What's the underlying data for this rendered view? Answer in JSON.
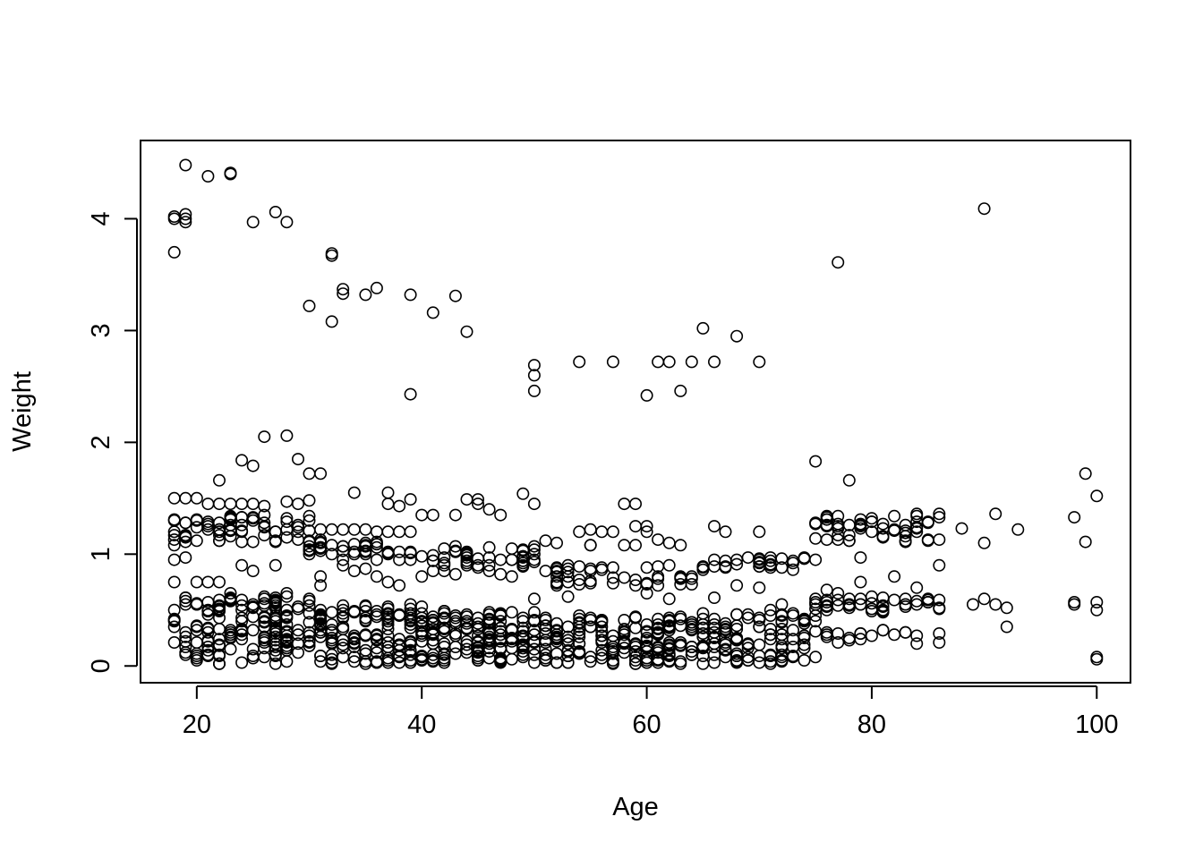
{
  "chart_data": {
    "type": "scatter",
    "title": "",
    "xlabel": "Age",
    "ylabel": "Weight",
    "xlim": [
      15,
      103
    ],
    "ylim": [
      -0.15,
      4.7
    ],
    "x_ticks": [
      20,
      40,
      60,
      80,
      100
    ],
    "y_ticks": [
      0,
      1,
      2,
      3,
      4
    ],
    "x_tick_labels": [
      "20",
      "40",
      "60",
      "80",
      "100"
    ],
    "y_tick_labels": [
      "0",
      "1",
      "2",
      "3",
      "4"
    ],
    "grid": false,
    "legend": "none",
    "marker": "open-circle",
    "marker_color": "#000000",
    "points": [
      [
        18,
        4.02
      ],
      [
        18,
        4.0
      ],
      [
        18,
        3.7
      ],
      [
        19,
        4.48
      ],
      [
        19,
        4.04
      ],
      [
        19,
        4.0
      ],
      [
        19,
        3.97
      ],
      [
        21,
        4.38
      ],
      [
        23,
        4.4
      ],
      [
        23,
        4.41
      ],
      [
        25,
        3.97
      ],
      [
        27,
        4.06
      ],
      [
        28,
        3.97
      ],
      [
        32,
        3.69
      ],
      [
        32,
        3.67
      ],
      [
        32,
        3.08
      ],
      [
        30,
        3.22
      ],
      [
        33,
        3.37
      ],
      [
        33,
        3.33
      ],
      [
        35,
        3.32
      ],
      [
        36,
        3.38
      ],
      [
        39,
        3.32
      ],
      [
        39,
        2.43
      ],
      [
        41,
        3.16
      ],
      [
        43,
        3.31
      ],
      [
        44,
        2.99
      ],
      [
        50,
        2.69
      ],
      [
        50,
        2.6
      ],
      [
        50,
        2.46
      ],
      [
        54,
        2.72
      ],
      [
        57,
        2.72
      ],
      [
        60,
        2.42
      ],
      [
        61,
        2.72
      ],
      [
        62,
        2.72
      ],
      [
        63,
        2.46
      ],
      [
        64,
        2.72
      ],
      [
        65,
        3.02
      ],
      [
        66,
        2.72
      ],
      [
        68,
        2.95
      ],
      [
        70,
        2.72
      ],
      [
        77,
        3.61
      ],
      [
        90,
        4.09
      ],
      [
        24,
        1.84
      ],
      [
        25,
        1.79
      ],
      [
        26,
        2.05
      ],
      [
        28,
        2.06
      ],
      [
        29,
        1.85
      ],
      [
        30,
        1.72
      ],
      [
        31,
        1.72
      ],
      [
        22,
        1.66
      ],
      [
        34,
        1.55
      ],
      [
        37,
        1.55
      ],
      [
        39,
        1.49
      ],
      [
        44,
        1.49
      ],
      [
        45,
        1.49
      ],
      [
        49,
        1.54
      ],
      [
        50,
        1.45
      ],
      [
        58,
        1.45
      ],
      [
        59,
        1.45
      ],
      [
        75,
        1.83
      ],
      [
        78,
        1.66
      ],
      [
        99,
        1.72
      ],
      [
        100,
        1.52
      ],
      [
        98,
        1.33
      ],
      [
        99,
        1.11
      ],
      [
        91,
        1.36
      ],
      [
        93,
        1.22
      ],
      [
        90,
        1.1
      ],
      [
        88,
        1.23
      ],
      [
        86,
        1.36
      ],
      [
        66,
        1.25
      ],
      [
        67,
        1.2
      ],
      [
        70,
        1.2
      ],
      [
        59,
        1.25
      ],
      [
        60,
        1.25
      ],
      [
        60,
        1.2
      ],
      [
        56,
        1.2
      ],
      [
        57,
        1.2
      ],
      [
        54,
        1.2
      ],
      [
        55,
        1.22
      ],
      [
        52,
        1.1
      ],
      [
        51,
        1.12
      ],
      [
        55,
        1.08
      ],
      [
        58,
        1.08
      ],
      [
        59,
        1.08
      ],
      [
        61,
        1.13
      ],
      [
        62,
        1.1
      ],
      [
        63,
        1.08
      ],
      [
        47,
        1.35
      ],
      [
        46,
        1.4
      ],
      [
        45,
        1.45
      ],
      [
        41,
        1.35
      ],
      [
        40,
        1.35
      ],
      [
        43,
        1.35
      ],
      [
        38,
        1.43
      ],
      [
        37,
        1.45
      ],
      [
        76,
        0.68
      ],
      [
        77,
        0.65
      ],
      [
        86,
        0.9
      ],
      [
        84,
        0.7
      ],
      [
        82,
        0.8
      ],
      [
        79,
        0.97
      ],
      [
        79,
        0.75
      ],
      [
        66,
        0.61
      ],
      [
        71,
        0.5
      ],
      [
        72,
        0.55
      ],
      [
        73,
        0.45
      ],
      [
        74,
        0.4
      ],
      [
        70,
        0.7
      ],
      [
        68,
        0.72
      ],
      [
        55,
        1.08
      ],
      [
        60,
        0.65
      ],
      [
        62,
        0.6
      ],
      [
        66,
        0.2
      ],
      [
        67,
        0.15
      ],
      [
        68,
        0.25
      ],
      [
        71,
        0.02
      ],
      [
        72,
        0.1
      ],
      [
        74,
        0.05
      ],
      [
        92,
        0.35
      ],
      [
        90,
        0.6
      ],
      [
        89,
        0.55
      ],
      [
        91,
        0.55
      ],
      [
        92,
        0.52
      ],
      [
        98,
        0.57
      ],
      [
        98,
        0.55
      ],
      [
        100,
        0.57
      ],
      [
        100,
        0.5
      ],
      [
        100,
        0.08
      ],
      [
        100,
        0.06
      ],
      [
        18,
        1.5
      ],
      [
        19,
        1.5
      ],
      [
        20,
        1.5
      ],
      [
        21,
        1.45
      ],
      [
        22,
        1.45
      ],
      [
        23,
        1.45
      ],
      [
        24,
        1.45
      ],
      [
        25,
        1.45
      ],
      [
        26,
        1.43
      ],
      [
        28,
        1.47
      ],
      [
        29,
        1.45
      ],
      [
        30,
        1.48
      ],
      [
        18,
        0.95
      ],
      [
        18,
        0.75
      ],
      [
        18,
        0.5
      ],
      [
        19,
        0.97
      ],
      [
        20,
        0.75
      ],
      [
        21,
        0.75
      ],
      [
        22,
        0.75
      ],
      [
        22,
        0.5
      ],
      [
        23,
        0.65
      ],
      [
        23,
        0.6
      ],
      [
        24,
        0.9
      ],
      [
        25,
        0.85
      ],
      [
        27,
        0.9
      ],
      [
        28,
        0.65
      ],
      [
        30,
        0.6
      ],
      [
        31,
        0.8
      ],
      [
        31,
        0.72
      ],
      [
        32,
        1.22
      ],
      [
        33,
        1.22
      ],
      [
        34,
        1.22
      ],
      [
        35,
        1.22
      ],
      [
        36,
        1.2
      ],
      [
        37,
        1.2
      ],
      [
        38,
        1.2
      ],
      [
        39,
        1.2
      ],
      [
        32,
        1.0
      ],
      [
        33,
        0.95
      ],
      [
        34,
        1.0
      ],
      [
        35,
        1.0
      ],
      [
        36,
        0.95
      ],
      [
        37,
        1.0
      ],
      [
        38,
        0.95
      ],
      [
        39,
        0.95
      ],
      [
        31,
        1.05
      ],
      [
        31,
        1.1
      ],
      [
        30,
        1.0
      ],
      [
        29,
        1.2
      ],
      [
        27,
        1.2
      ],
      [
        26,
        1.25
      ],
      [
        25,
        1.3
      ],
      [
        24,
        1.2
      ],
      [
        24,
        1.33
      ],
      [
        23,
        1.33
      ],
      [
        22,
        1.28
      ],
      [
        21,
        1.25
      ],
      [
        20,
        1.3
      ],
      [
        19,
        1.28
      ],
      [
        18,
        1.3
      ],
      [
        18,
        1.2
      ],
      [
        18,
        1.08
      ],
      [
        33,
        0.9
      ],
      [
        34,
        0.85
      ],
      [
        35,
        0.87
      ],
      [
        36,
        0.8
      ],
      [
        37,
        0.75
      ],
      [
        38,
        0.72
      ],
      [
        40,
        0.8
      ],
      [
        41,
        0.85
      ],
      [
        42,
        0.85
      ],
      [
        43,
        0.82
      ],
      [
        44,
        0.9
      ],
      [
        45,
        0.88
      ],
      [
        46,
        0.85
      ],
      [
        47,
        0.82
      ],
      [
        48,
        0.8
      ],
      [
        49,
        0.92
      ],
      [
        50,
        0.95
      ],
      [
        50,
        0.6
      ],
      [
        52,
        0.8
      ],
      [
        53,
        0.62
      ]
    ],
    "bands": [
      {
        "x_from": 18,
        "x_to": 31,
        "y_min": 0.02,
        "y_max": 0.62,
        "n": 170
      },
      {
        "x_from": 18,
        "x_to": 31,
        "y_min": 1.1,
        "y_max": 1.35,
        "n": 55
      },
      {
        "x_from": 30,
        "x_to": 40,
        "y_min": 0.02,
        "y_max": 0.55,
        "n": 130
      },
      {
        "x_from": 30,
        "x_to": 40,
        "y_min": 1.0,
        "y_max": 1.12,
        "n": 30
      },
      {
        "x_from": 40,
        "x_to": 50,
        "y_min": 0.03,
        "y_max": 0.5,
        "n": 150
      },
      {
        "x_from": 40,
        "x_to": 50,
        "y_min": 0.88,
        "y_max": 1.08,
        "n": 40
      },
      {
        "x_from": 50,
        "x_to": 65,
        "y_min": 0.02,
        "y_max": 0.45,
        "n": 180
      },
      {
        "x_from": 50,
        "x_to": 65,
        "y_min": 0.72,
        "y_max": 0.9,
        "n": 45
      },
      {
        "x_from": 65,
        "x_to": 75,
        "y_min": 0.03,
        "y_max": 0.48,
        "n": 90
      },
      {
        "x_from": 65,
        "x_to": 75,
        "y_min": 0.85,
        "y_max": 0.98,
        "n": 30
      },
      {
        "x_from": 75,
        "x_to": 86,
        "y_min": 0.48,
        "y_max": 0.62,
        "n": 45
      },
      {
        "x_from": 75,
        "x_to": 86,
        "y_min": 1.1,
        "y_max": 1.37,
        "n": 55
      },
      {
        "x_from": 75,
        "x_to": 86,
        "y_min": 0.2,
        "y_max": 0.32,
        "n": 20
      }
    ]
  }
}
